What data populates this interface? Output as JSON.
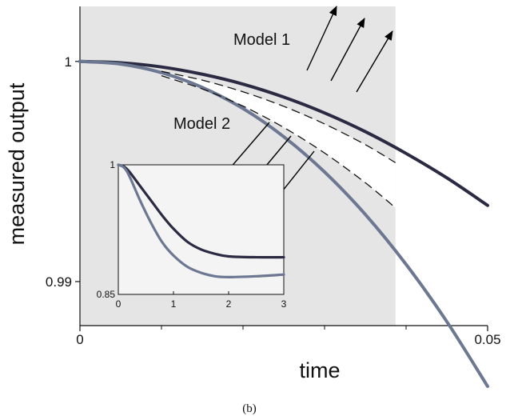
{
  "chart_data": [
    {
      "type": "line",
      "title": "",
      "xlabel": "time",
      "ylabel": "measured output",
      "xlim": [
        0,
        0.05
      ],
      "ylim": [
        0.988,
        1.0025
      ],
      "xticks": [
        {
          "value": 0,
          "label": "0"
        },
        {
          "value": 0.05,
          "label": "0.05"
        }
      ],
      "yticks": [
        {
          "value": 1,
          "label": "1"
        },
        {
          "value": 0.99,
          "label": "0.99"
        }
      ],
      "minor_xticks": [
        0.01,
        0.02,
        0.03,
        0.04
      ],
      "shaded_region_x": [
        0,
        0.0387
      ],
      "shaded_color": "#e5e5e5",
      "grid": false,
      "series": [
        {
          "name": "Model 1",
          "color": "#2a2b42",
          "x": [
            0,
            0.005,
            0.01,
            0.015,
            0.02,
            0.025,
            0.03,
            0.035,
            0.04,
            0.045,
            0.05
          ],
          "values": [
            1.0,
            0.99994,
            0.99975,
            0.99942,
            0.99897,
            0.99838,
            0.99766,
            0.99681,
            0.99582,
            0.99471,
            0.99346
          ]
        },
        {
          "name": "Model 2",
          "color": "#6c7791",
          "x": [
            0,
            0.005,
            0.01,
            0.015,
            0.02,
            0.025,
            0.03,
            0.035,
            0.04,
            0.045,
            0.05
          ],
          "values": [
            1.0,
            0.99988,
            0.99949,
            0.99882,
            0.99786,
            0.99658,
            0.99498,
            0.99305,
            0.99078,
            0.98818,
            0.98524
          ]
        },
        {
          "name": "",
          "style": "dashed",
          "color": "#111111",
          "x": [
            0.01,
            0.015,
            0.02,
            0.025,
            0.03,
            0.035,
            0.0387
          ],
          "values": [
            0.99955,
            0.99915,
            0.99862,
            0.99796,
            0.99716,
            0.99622,
            0.9954
          ]
        },
        {
          "name": "",
          "style": "dashed",
          "color": "#111111",
          "x": [
            0.01,
            0.015,
            0.02,
            0.025,
            0.03,
            0.035,
            0.0387
          ],
          "values": [
            0.99935,
            0.99875,
            0.99797,
            0.997,
            0.99584,
            0.99449,
            0.99335
          ]
        }
      ],
      "annotations": [
        {
          "text": "Model 1"
        },
        {
          "text": "Model 2"
        }
      ],
      "caption": "(b)"
    },
    {
      "type": "line",
      "title": "",
      "xlabel": "",
      "ylabel": "",
      "xlim": [
        0,
        3
      ],
      "ylim": [
        0.85,
        1.0
      ],
      "xticks": [
        {
          "value": 0,
          "label": "0"
        },
        {
          "value": 1,
          "label": "1"
        },
        {
          "value": 2,
          "label": "2"
        },
        {
          "value": 3,
          "label": "3"
        }
      ],
      "yticks": [
        {
          "value": 1,
          "label": "1"
        },
        {
          "value": 0.85,
          "label": "0.85"
        }
      ],
      "background": "#f4f4f4",
      "series": [
        {
          "name": "Model 1",
          "color": "#2a2b42",
          "x": [
            0,
            0.1,
            0.2,
            0.4,
            0.6,
            0.8,
            1.0,
            1.25,
            1.5,
            1.75,
            2.0,
            2.5,
            3.0
          ],
          "values": [
            1.0,
            0.998,
            0.992,
            0.975,
            0.958,
            0.941,
            0.926,
            0.911,
            0.902,
            0.897,
            0.894,
            0.893,
            0.893
          ]
        },
        {
          "name": "Model 2",
          "color": "#6c7791",
          "x": [
            0,
            0.1,
            0.2,
            0.4,
            0.6,
            0.8,
            1.0,
            1.25,
            1.5,
            1.75,
            2.0,
            2.5,
            3.0
          ],
          "values": [
            1.0,
            0.997,
            0.987,
            0.958,
            0.932,
            0.91,
            0.895,
            0.882,
            0.875,
            0.871,
            0.87,
            0.871,
            0.873
          ]
        }
      ]
    }
  ]
}
